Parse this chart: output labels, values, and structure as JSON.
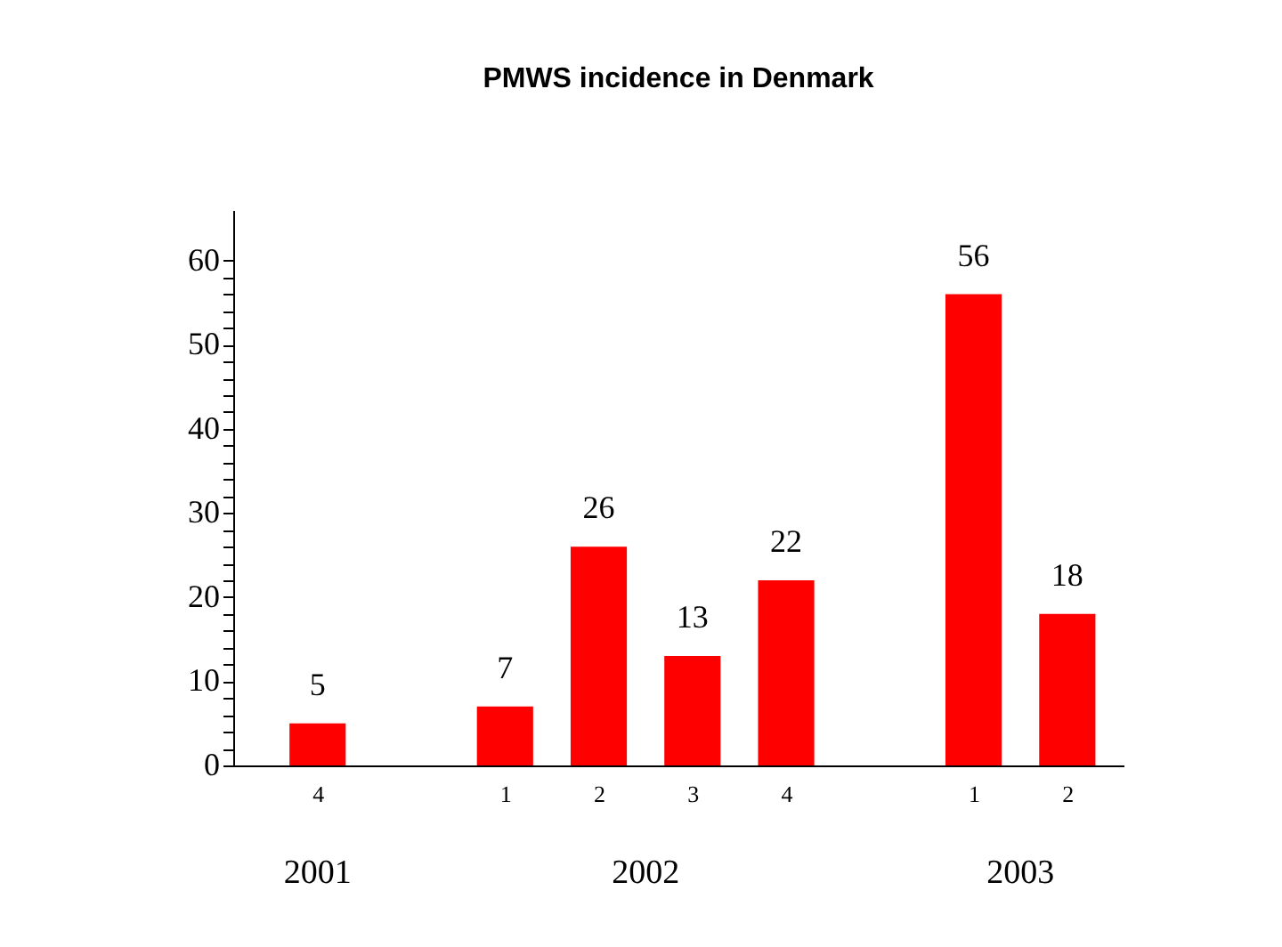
{
  "chart_data": {
    "type": "bar",
    "title": "PMWS incidence in Denmark",
    "categories": [
      "4",
      null,
      "1",
      "2",
      "3",
      "4",
      null,
      "1",
      "2"
    ],
    "values": [
      5,
      null,
      7,
      26,
      13,
      22,
      null,
      56,
      18
    ],
    "color": "#ff0000",
    "annotations": [
      "2001",
      "2002",
      "2003"
    ],
    "ylim": [
      0,
      66
    ],
    "yticks": [
      0,
      {
        "value": 2,
        "label": null
      },
      {
        "value": 4,
        "label": null
      },
      {
        "value": 6,
        "label": null
      },
      {
        "value": 8,
        "label": null
      },
      10,
      {
        "value": 12,
        "label": null
      },
      {
        "value": 14,
        "label": null
      },
      {
        "value": 16,
        "label": null
      },
      {
        "value": 18,
        "label": null
      },
      20,
      {
        "value": 22,
        "label": null
      },
      {
        "value": 24,
        "label": null
      },
      {
        "value": 26,
        "label": null
      },
      {
        "value": 28,
        "label": null
      },
      30,
      {
        "value": 32,
        "label": null
      },
      {
        "value": 34,
        "label": null
      },
      {
        "value": 36,
        "label": null
      },
      {
        "value": 38,
        "label": null
      },
      40,
      {
        "value": 42,
        "label": null
      },
      {
        "value": 44,
        "label": null
      },
      {
        "value": 46,
        "label": null
      },
      {
        "value": 48,
        "label": null
      },
      50,
      {
        "value": 52,
        "label": null
      },
      {
        "value": 54,
        "label": null
      },
      {
        "value": 56,
        "label": null
      },
      {
        "value": 58,
        "label": null
      },
      60
    ],
    "data_labels": true,
    "grid": false
  }
}
